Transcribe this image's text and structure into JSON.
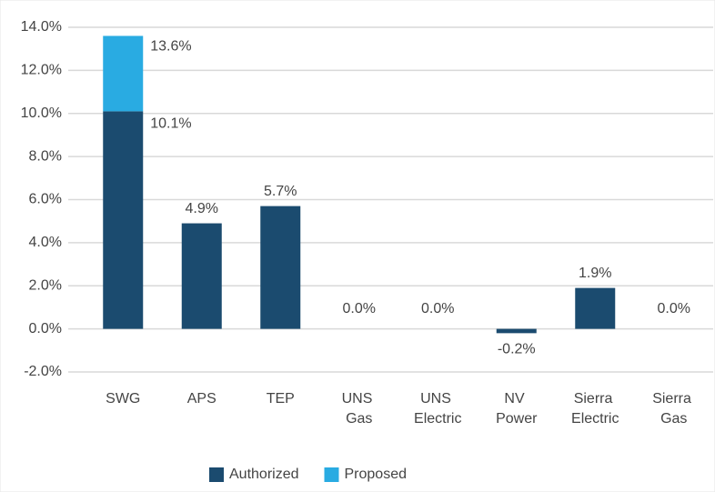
{
  "chart_data": {
    "type": "stacked_bar",
    "categories": [
      "SWG",
      "APS",
      "TEP",
      "UNS Gas",
      "UNS Electric",
      "NV Power",
      "Sierra Electric",
      "Sierra Gas"
    ],
    "series": [
      {
        "name": "Authorized",
        "color": "#1b4b6f",
        "values": [
          10.1,
          4.9,
          5.7,
          0.0,
          0.0,
          -0.2,
          1.9,
          0.0
        ],
        "value_labels": [
          "10.1%",
          "4.9%",
          "5.7%",
          "0.0%",
          "0.0%",
          "-0.2%",
          "1.9%",
          "0.0%"
        ]
      },
      {
        "name": "Proposed",
        "color": "#29abe2",
        "values": [
          3.5,
          null,
          null,
          null,
          null,
          null,
          null,
          null
        ]
      }
    ],
    "totals": [
      13.6,
      null,
      null,
      null,
      null,
      null,
      null,
      null
    ],
    "total_labels": [
      "13.6%",
      null,
      null,
      null,
      null,
      null,
      null,
      null
    ],
    "ylim": [
      -2,
      14
    ],
    "yticks": [
      {
        "value": -2,
        "label": "-2.0%"
      },
      {
        "value": 0,
        "label": "0.0%"
      },
      {
        "value": 2,
        "label": "2.0%"
      },
      {
        "value": 4,
        "label": "4.0%"
      },
      {
        "value": 6,
        "label": "6.0%"
      },
      {
        "value": 8,
        "label": "8.0%"
      },
      {
        "value": 10,
        "label": "10.0%"
      },
      {
        "value": 12,
        "label": "12.0%"
      },
      {
        "value": 14,
        "label": "14.0%"
      }
    ],
    "grid": true,
    "legend": "bottom"
  }
}
